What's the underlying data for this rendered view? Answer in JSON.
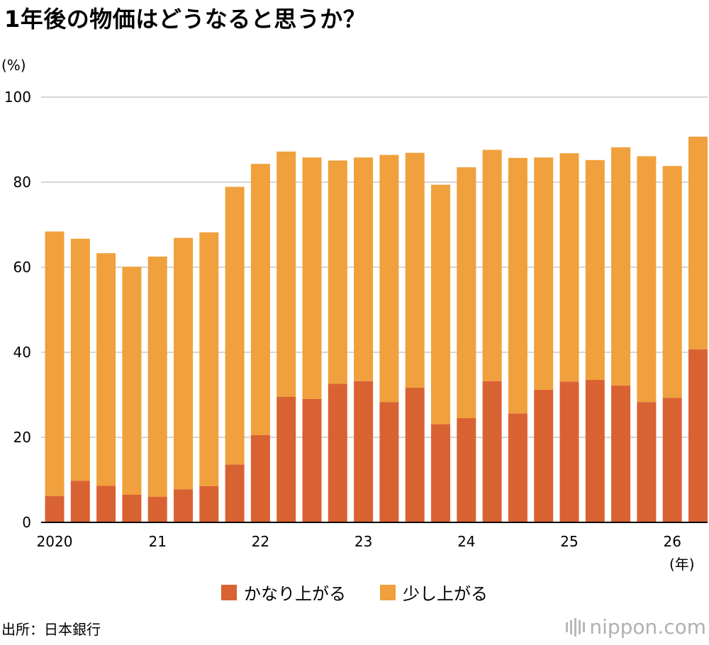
{
  "title": "1年後の物価はどうなると思うか？",
  "y_unit": "(%)",
  "x_unit": "(年)",
  "source": "出所：日本銀行",
  "brand": {
    "text": "nippon.com",
    "icon": "nippon-logo-bars-icon"
  },
  "colors": {
    "series1": "#d96233",
    "series2": "#f0a03c",
    "grid": "#c8c8c8"
  },
  "chart_data": {
    "type": "bar",
    "stacked": true,
    "ylim": [
      0,
      100
    ],
    "yticks": [
      "0",
      "20",
      "40",
      "60",
      "80",
      "100"
    ],
    "xtick_labels": [
      {
        "index": 0,
        "label": "2020"
      },
      {
        "index": 4,
        "label": "21"
      },
      {
        "index": 8,
        "label": "22"
      },
      {
        "index": 12,
        "label": "23"
      },
      {
        "index": 16,
        "label": "24"
      },
      {
        "index": 20,
        "label": "25"
      },
      {
        "index": 24,
        "label": "26"
      }
    ],
    "grid": "horizontal",
    "legend_position": "bottom",
    "series": [
      {
        "name": "かなり上がる",
        "values": [
          6.2,
          9.8,
          8.6,
          6.5,
          6.0,
          7.8,
          8.5,
          13.6,
          20.5,
          29.5,
          29.0,
          32.6,
          33.2,
          28.3,
          31.7,
          23.1,
          24.5,
          33.2,
          25.6,
          31.2,
          33.1,
          33.5,
          32.2,
          28.3,
          29.3,
          40.7
        ]
      },
      {
        "name": "少し上がる",
        "values": [
          62.2,
          56.9,
          54.7,
          53.6,
          56.5,
          59.1,
          59.7,
          65.3,
          63.8,
          57.7,
          56.8,
          52.5,
          52.6,
          58.1,
          55.2,
          56.3,
          59.0,
          54.4,
          60.1,
          54.6,
          53.7,
          51.7,
          56.0,
          57.8,
          54.5,
          50.0
        ]
      }
    ]
  }
}
